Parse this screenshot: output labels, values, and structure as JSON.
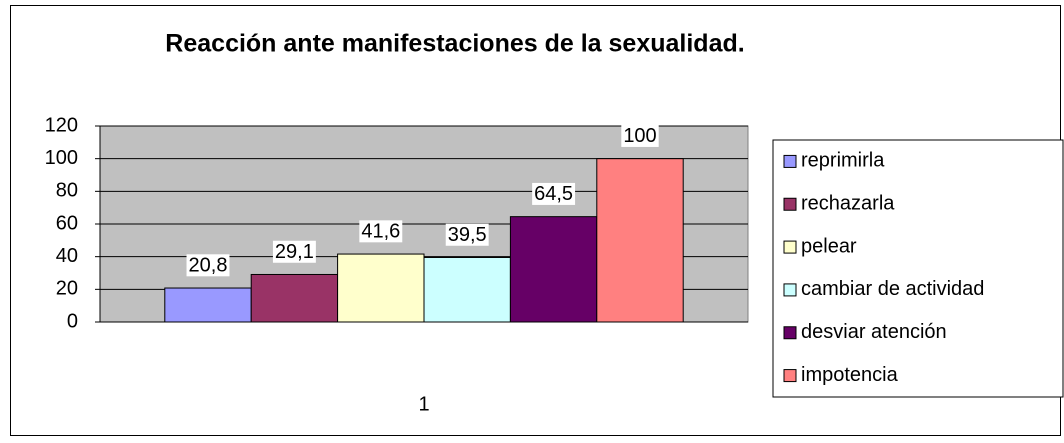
{
  "chart_data": {
    "type": "bar",
    "title": "Reacción ante manifestaciones de la sexualidad.",
    "categories": [
      "1"
    ],
    "series": [
      {
        "name": "reprimirla",
        "color": "#9999ff",
        "values": [
          20.8
        ],
        "value_labels": [
          "20,8"
        ]
      },
      {
        "name": "rechazarla",
        "color": "#993366",
        "values": [
          29.1
        ],
        "value_labels": [
          "29,1"
        ]
      },
      {
        "name": "pelear",
        "color": "#ffffcc",
        "values": [
          41.6
        ],
        "value_labels": [
          "41,6"
        ]
      },
      {
        "name": "cambiar de actividad",
        "color": "#ccffff",
        "values": [
          39.5
        ],
        "value_labels": [
          "39,5"
        ]
      },
      {
        "name": "desviar atención",
        "color": "#660066",
        "values": [
          64.5
        ],
        "value_labels": [
          "64,5"
        ]
      },
      {
        "name": "impotencia",
        "color": "#ff8080",
        "values": [
          100
        ],
        "value_labels": [
          "100"
        ]
      }
    ],
    "ylim": [
      0,
      120
    ],
    "yticks": [
      0,
      20,
      40,
      60,
      80,
      100,
      120
    ],
    "grid": true,
    "legend": "right"
  }
}
